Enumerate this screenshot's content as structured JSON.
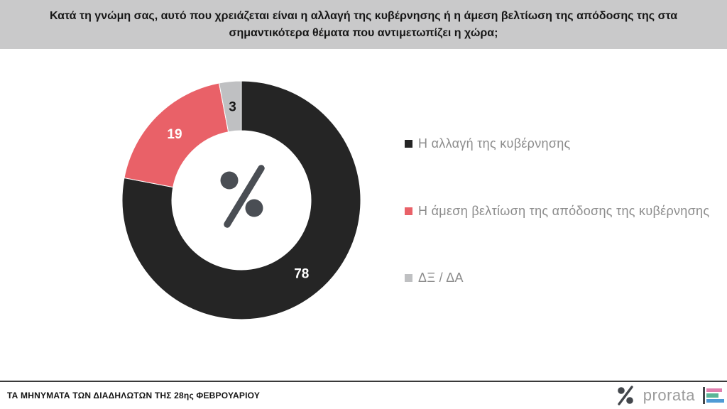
{
  "header": {
    "question": "Κατά τη γνώμη σας, αυτό που χρειάζεται είναι η αλλαγή της κυβέρνησης ή η άμεση βελτίωση της απόδοσης της στα σημαντικότερα θέματα που αντιμετωπίζει η χώρα;"
  },
  "chart_data": {
    "type": "pie",
    "variant": "donut",
    "title": "",
    "start_angle_deg": 0,
    "direction": "clockwise",
    "legend_position": "right",
    "center_icon": "percent-icon",
    "center_icon_color": "#4a4e54",
    "slices": [
      {
        "label": "Η αλλαγή της κυβέρνησης",
        "value": 78,
        "color": "#252525",
        "value_label_color": "#ffffff"
      },
      {
        "label": "Η άμεση βελτίωση της απόδοσης της κυβέρνησης",
        "value": 19,
        "color": "#e96168",
        "value_label_color": "#ffffff"
      },
      {
        "label": "ΔΞ / ΔΑ",
        "value": 3,
        "color": "#bfc0c2",
        "value_label_color": "#161616"
      }
    ]
  },
  "footer": {
    "source_label": "ΤΑ ΜΗΝΥΜΑΤΑ ΤΩΝ ΔΙΑΔΗΛΩΤΩΝ ΤΗΣ 28ης ΦΕΒΡΟΥΑΡΙΟΥ",
    "brand": {
      "name": "prorata",
      "percent_icon_color": "#43474c",
      "wordmark_color": "#9b9b9b",
      "bar_colors": [
        "#e07fae",
        "#5bb597",
        "#4f9bd5"
      ]
    }
  }
}
